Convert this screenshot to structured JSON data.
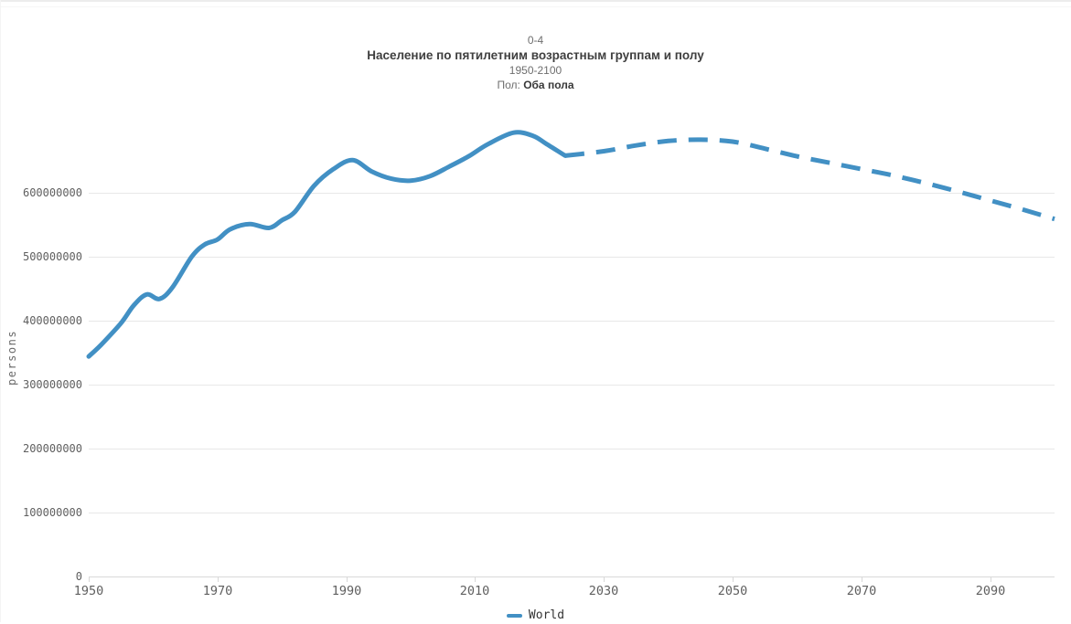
{
  "header": {
    "age_group": "0-4",
    "title": "Население по пятилетним возрастным группам и полу",
    "years": "1950-2100",
    "sex_label": "Пол:",
    "sex_value": "Оба пола"
  },
  "colors": {
    "series_blue": "#4290c4",
    "grid": "#e8e8e8",
    "axis": "#d8d8d8",
    "tick_text": "#5f5f5f"
  },
  "chart_data": {
    "type": "line",
    "title": "Население по пятилетним возрастным группам и полу",
    "subtitle_age_group": "0-4",
    "subtitle_years": "1950-2100",
    "xlabel": "",
    "ylabel": "persons",
    "xlim": [
      1950,
      2100
    ],
    "ylim": [
      0,
      700000000
    ],
    "x_ticks": [
      1950,
      1970,
      1990,
      2010,
      2030,
      2050,
      2070,
      2090
    ],
    "y_ticks": [
      0,
      100000000,
      200000000,
      300000000,
      400000000,
      500000000,
      600000000
    ],
    "grid": "horizontal",
    "legend_position": "bottom-center",
    "legend": [
      {
        "label": "World",
        "color": "#4290c4"
      }
    ],
    "series": [
      {
        "name": "World (estimates)",
        "style": "solid",
        "color": "#4290c4",
        "points": [
          [
            1950,
            344000000
          ],
          [
            1952,
            363000000
          ],
          [
            1955,
            396000000
          ],
          [
            1957,
            424000000
          ],
          [
            1959,
            441000000
          ],
          [
            1961,
            434000000
          ],
          [
            1963,
            452000000
          ],
          [
            1966,
            500000000
          ],
          [
            1968,
            519000000
          ],
          [
            1970,
            527000000
          ],
          [
            1972,
            543000000
          ],
          [
            1975,
            551000000
          ],
          [
            1978,
            545000000
          ],
          [
            1980,
            557000000
          ],
          [
            1982,
            570000000
          ],
          [
            1985,
            611000000
          ],
          [
            1988,
            637000000
          ],
          [
            1991,
            651000000
          ],
          [
            1994,
            633000000
          ],
          [
            1997,
            622000000
          ],
          [
            2000,
            619000000
          ],
          [
            2003,
            626000000
          ],
          [
            2006,
            641000000
          ],
          [
            2009,
            657000000
          ],
          [
            2012,
            676000000
          ],
          [
            2016,
            694000000
          ],
          [
            2019,
            689000000
          ],
          [
            2021,
            677000000
          ],
          [
            2024,
            658000000
          ]
        ]
      },
      {
        "name": "World (projection)",
        "style": "dashed",
        "color": "#4290c4",
        "points": [
          [
            2024,
            658000000
          ],
          [
            2030,
            665000000
          ],
          [
            2035,
            674000000
          ],
          [
            2040,
            681000000
          ],
          [
            2045,
            683000000
          ],
          [
            2050,
            680000000
          ],
          [
            2055,
            669000000
          ],
          [
            2060,
            657000000
          ],
          [
            2065,
            647000000
          ],
          [
            2070,
            637000000
          ],
          [
            2075,
            627000000
          ],
          [
            2080,
            615000000
          ],
          [
            2085,
            602000000
          ],
          [
            2090,
            588000000
          ],
          [
            2095,
            574000000
          ],
          [
            2100,
            559000000
          ]
        ]
      }
    ]
  }
}
